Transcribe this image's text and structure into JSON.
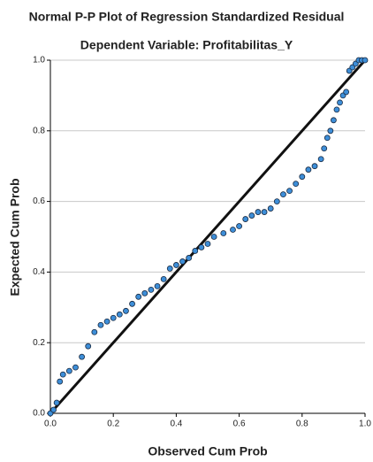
{
  "chart_data": {
    "type": "scatter",
    "title": "Normal P-P Plot of Regression Standardized Residual",
    "subtitle": "Dependent Variable: Profitabilitas_Y",
    "x_label": "Observed Cum Prob",
    "y_label": "Expected Cum Prob",
    "x": [
      0,
      0.01,
      0.02,
      0.03,
      0.04,
      0.06,
      0.08,
      0.1,
      0.12,
      0.14,
      0.16,
      0.18,
      0.2,
      0.22,
      0.24,
      0.26,
      0.28,
      0.3,
      0.32,
      0.34,
      0.36,
      0.38,
      0.4,
      0.42,
      0.44,
      0.46,
      0.48,
      0.5,
      0.52,
      0.55,
      0.58,
      0.6,
      0.62,
      0.64,
      0.66,
      0.68,
      0.7,
      0.72,
      0.74,
      0.76,
      0.78,
      0.8,
      0.82,
      0.84,
      0.86,
      0.87,
      0.88,
      0.89,
      0.9,
      0.91,
      0.92,
      0.93,
      0.94,
      0.95,
      0.96,
      0.97,
      0.98,
      0.99,
      1.0
    ],
    "values": [
      0,
      0.01,
      0.03,
      0.09,
      0.11,
      0.12,
      0.13,
      0.16,
      0.19,
      0.23,
      0.25,
      0.26,
      0.27,
      0.28,
      0.29,
      0.31,
      0.33,
      0.34,
      0.35,
      0.36,
      0.38,
      0.41,
      0.42,
      0.43,
      0.44,
      0.46,
      0.47,
      0.48,
      0.5,
      0.51,
      0.52,
      0.53,
      0.55,
      0.56,
      0.57,
      0.57,
      0.58,
      0.6,
      0.62,
      0.63,
      0.65,
      0.67,
      0.69,
      0.7,
      0.72,
      0.75,
      0.78,
      0.8,
      0.83,
      0.86,
      0.88,
      0.9,
      0.91,
      0.97,
      0.98,
      0.99,
      1.0,
      1.0,
      1.0
    ],
    "color": "#3d8ed8",
    "xlim": [
      0,
      1
    ],
    "ylim": [
      0,
      1
    ],
    "xticks": [
      {
        "value": 0,
        "label": "0.0"
      },
      {
        "value": 0.2,
        "label": "0.2"
      },
      {
        "value": 0.4,
        "label": "0.4"
      },
      {
        "value": 0.6,
        "label": "0.6"
      },
      {
        "value": 0.8,
        "label": "0.8"
      },
      {
        "value": 1,
        "label": "1.0"
      }
    ],
    "yticks": [
      {
        "value": 0,
        "label": "0.0"
      },
      {
        "value": 0.2,
        "label": "0.2"
      },
      {
        "value": 0.4,
        "label": "0.4"
      },
      {
        "value": 0.6,
        "label": "0.6"
      },
      {
        "value": 0.8,
        "label": "0.8"
      },
      {
        "value": 1,
        "label": "1.0"
      }
    ],
    "grid": true
  }
}
